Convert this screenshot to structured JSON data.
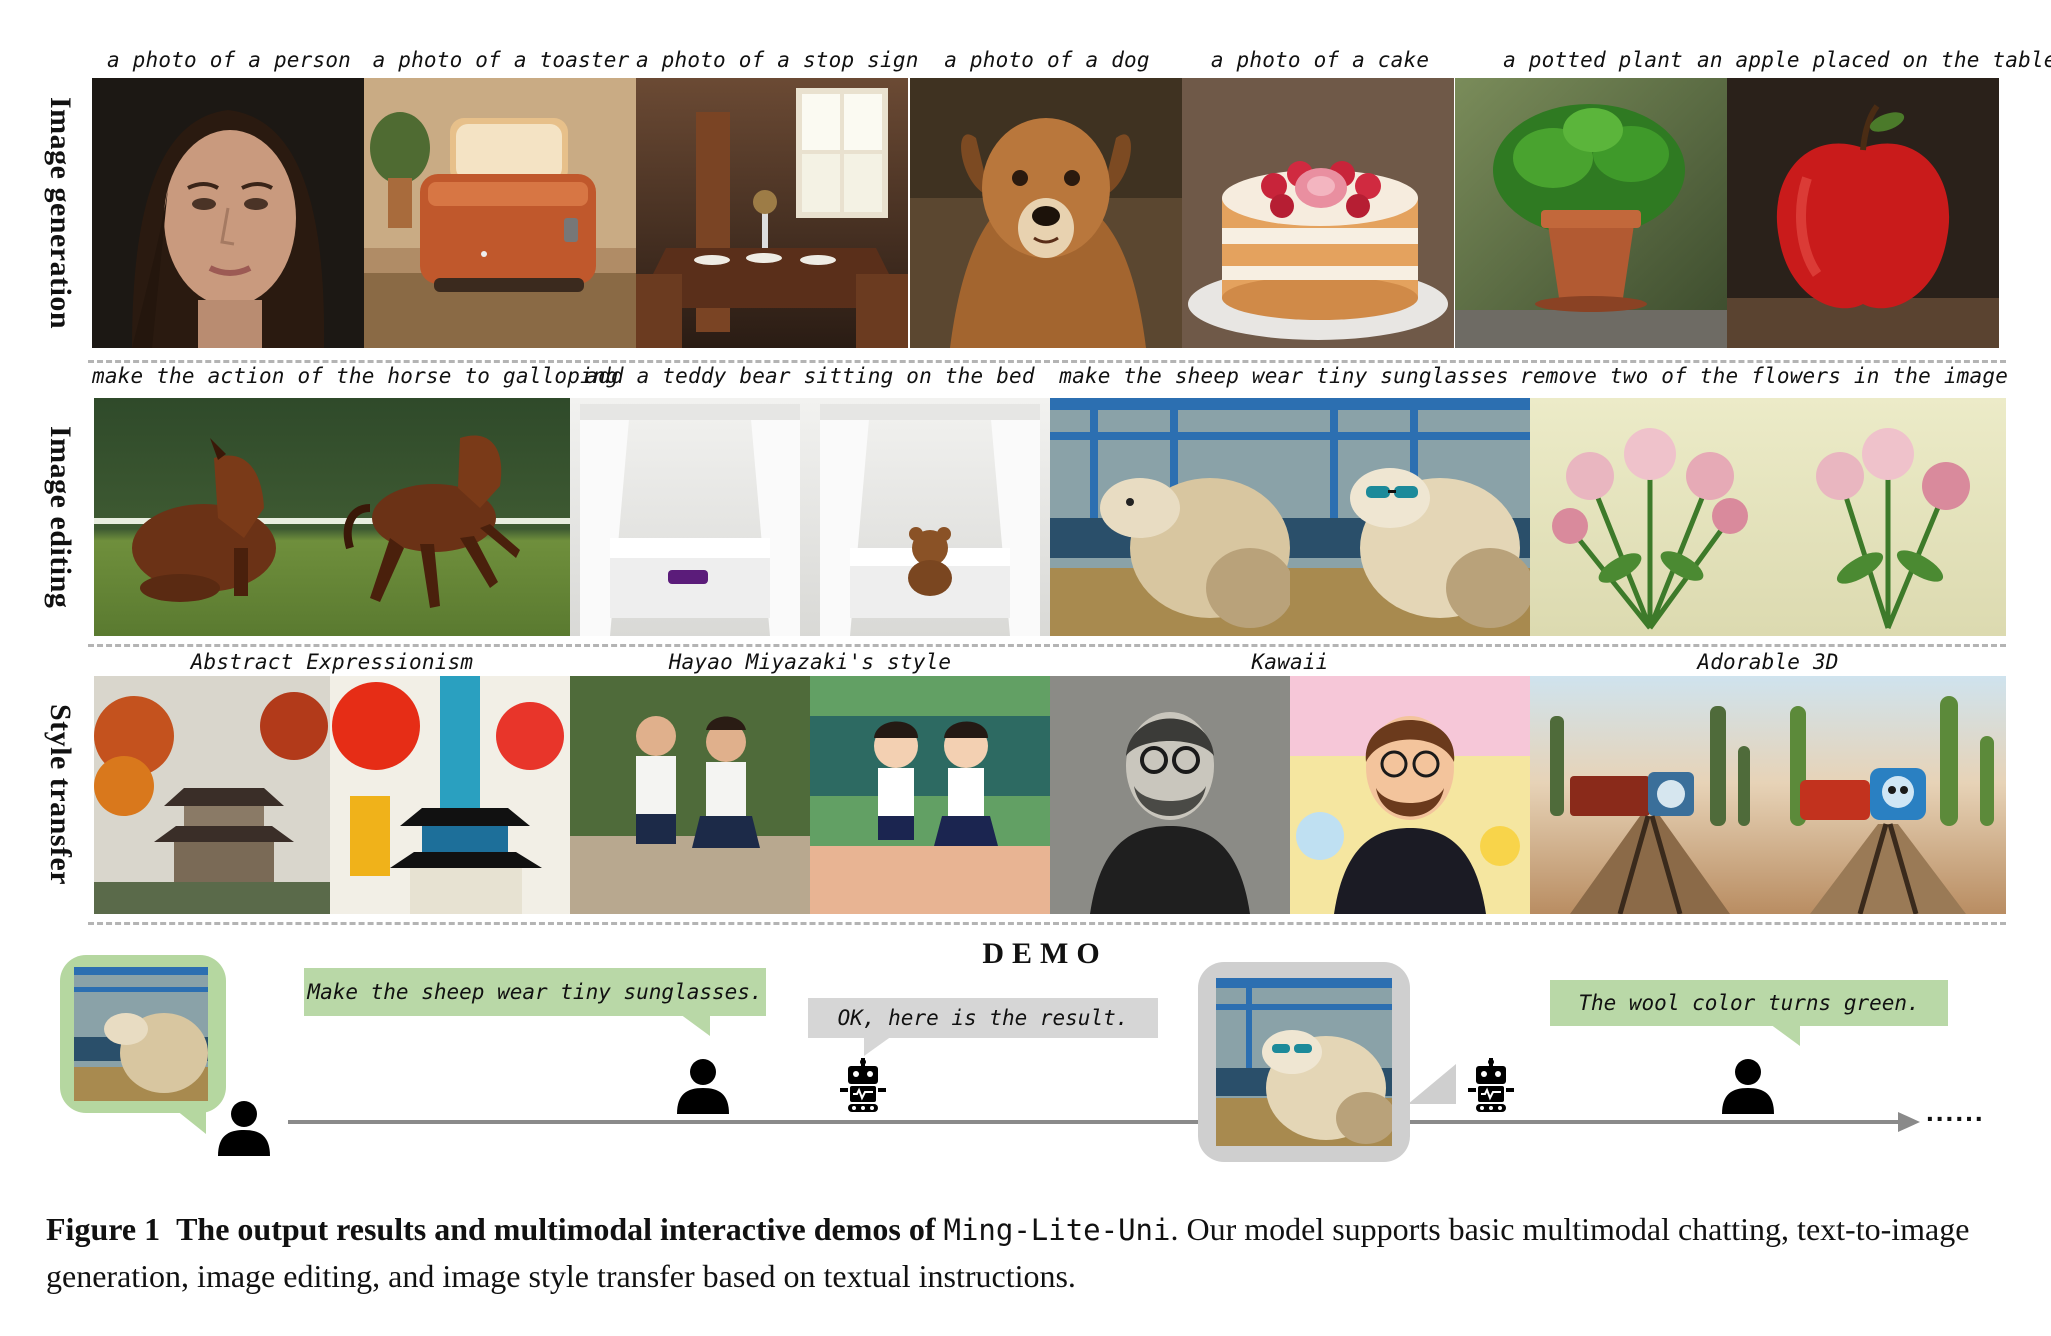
{
  "rows": {
    "generation_label": "Image generation",
    "editing_label": "Image editing",
    "style_label": "Style transfer"
  },
  "generation": {
    "captions": [
      "a photo of a person",
      "a photo of a toaster",
      "a photo of a stop sign",
      "a photo of a dog",
      "a photo of a cake",
      "a potted plant",
      "an apple placed on the table"
    ]
  },
  "editing": {
    "captions": [
      "make the action of the horse to galloping",
      "add a teddy bear sitting on the bed",
      "make the sheep wear tiny sunglasses",
      "remove two of the flowers in the image"
    ]
  },
  "style": {
    "captions": [
      "Abstract Expressionism",
      "Hayao Miyazaki's style",
      "Kawaii",
      "Adorable 3D"
    ]
  },
  "demo": {
    "title": "DEMO",
    "user_msg_1": "Make the sheep wear tiny sunglasses.",
    "bot_msg_1": "OK, here is the result.",
    "user_msg_2": "The wool color turns green.",
    "ellipsis": "......"
  },
  "figure_caption": {
    "label": "Figure 1",
    "bold_text": "The output results and multimodal interactive demos of",
    "model_name": "Ming-Lite-Uni",
    "rest": ". Our model supports basic multimodal chatting, text-to-image generation, image editing, and image style transfer based on textual instructions."
  },
  "colors": {
    "bubble_green": "#b9d8a7",
    "bubble_gray": "#d6d6d6",
    "arrow": "#8a8a8a"
  }
}
